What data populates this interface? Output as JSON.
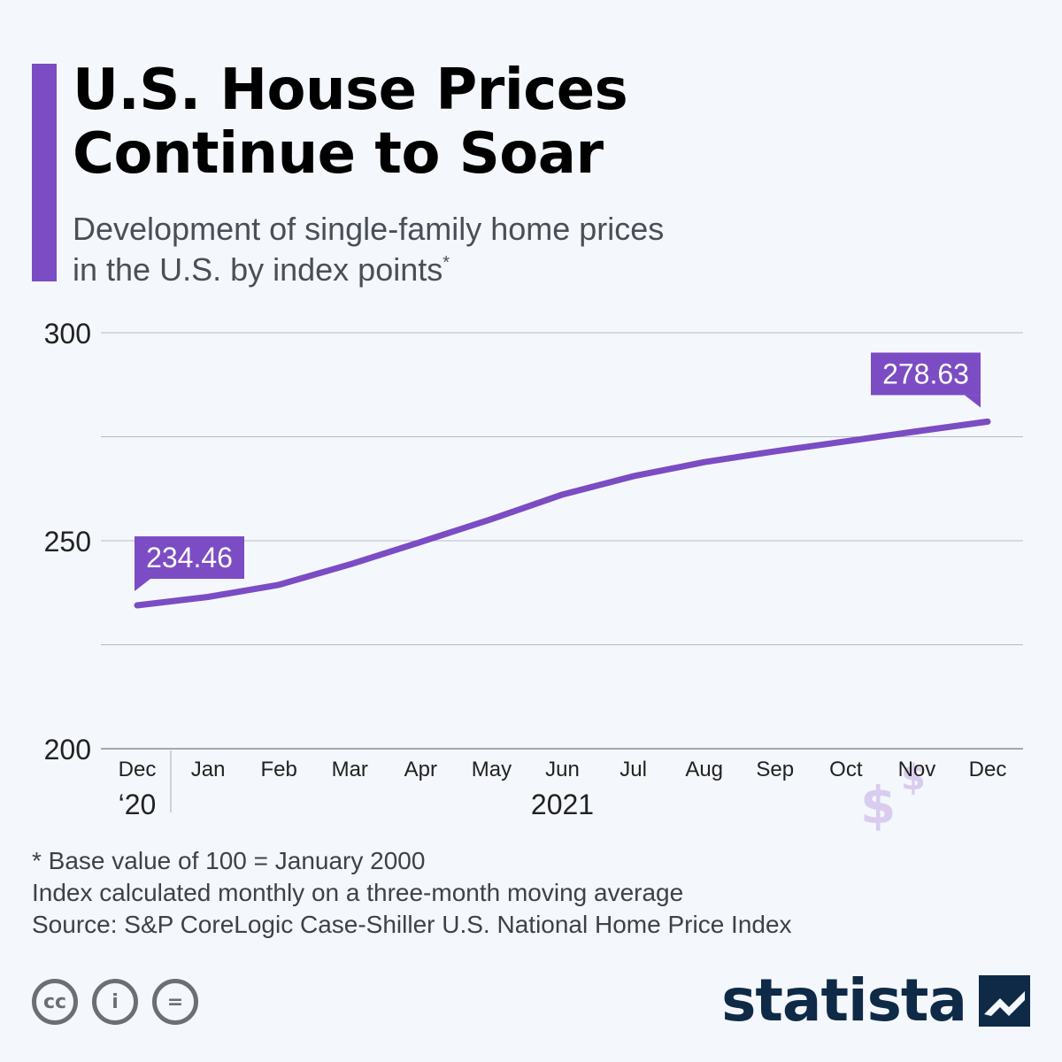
{
  "header": {
    "title_line1": "U.S. House Prices",
    "title_line2": "Continue to Soar",
    "subtitle_line1": "Development of single-family home prices",
    "subtitle_line2": "in the U.S. by index points",
    "subtitle_marker": "*"
  },
  "colors": {
    "accent": "#7b4cc4",
    "line": "#7b4cc4",
    "grid": "#b7bcc4",
    "text": "#222222",
    "illustration_fill": "#d9ccee",
    "illustration_stroke": "#9474cc",
    "brand": "#0f2a47"
  },
  "chart_data": {
    "type": "line",
    "title": "U.S. House Prices Continue to Soar",
    "ylabel": "index points",
    "ylim": [
      200,
      300
    ],
    "yticks": [
      200,
      250,
      300
    ],
    "grid": true,
    "categories": [
      "Dec",
      "Jan",
      "Feb",
      "Mar",
      "Apr",
      "May",
      "Jun",
      "Jul",
      "Aug",
      "Sep",
      "Oct",
      "Nov",
      "Dec"
    ],
    "year_labels": [
      {
        "label": "‘20",
        "category_index": 0
      },
      {
        "label": "2021",
        "category_index": 6
      }
    ],
    "series": [
      {
        "name": "S&P CoreLogic Case-Shiller U.S. National Home Price Index",
        "values": [
          234.46,
          236.5,
          239.4,
          244.3,
          249.7,
          255.2,
          261.1,
          265.5,
          268.9,
          271.5,
          273.9,
          276.3,
          278.63
        ]
      }
    ],
    "annotations": [
      {
        "text": "234.46",
        "category_index": 0
      },
      {
        "text": "278.63",
        "category_index": 12
      }
    ],
    "illustration": {
      "symbols": [
        "$",
        "$",
        "$"
      ]
    }
  },
  "notes": {
    "base": "* Base value of 100 = January 2000",
    "method": "Index calculated monthly on a three-month moving average",
    "source": "Source: S&P CoreLogic Case-Shiller U.S. National Home Price Index"
  },
  "footer": {
    "cc_icon_text": "cc",
    "by_icon_text": "i",
    "nd_icon_text": "=",
    "brand": "statista"
  }
}
